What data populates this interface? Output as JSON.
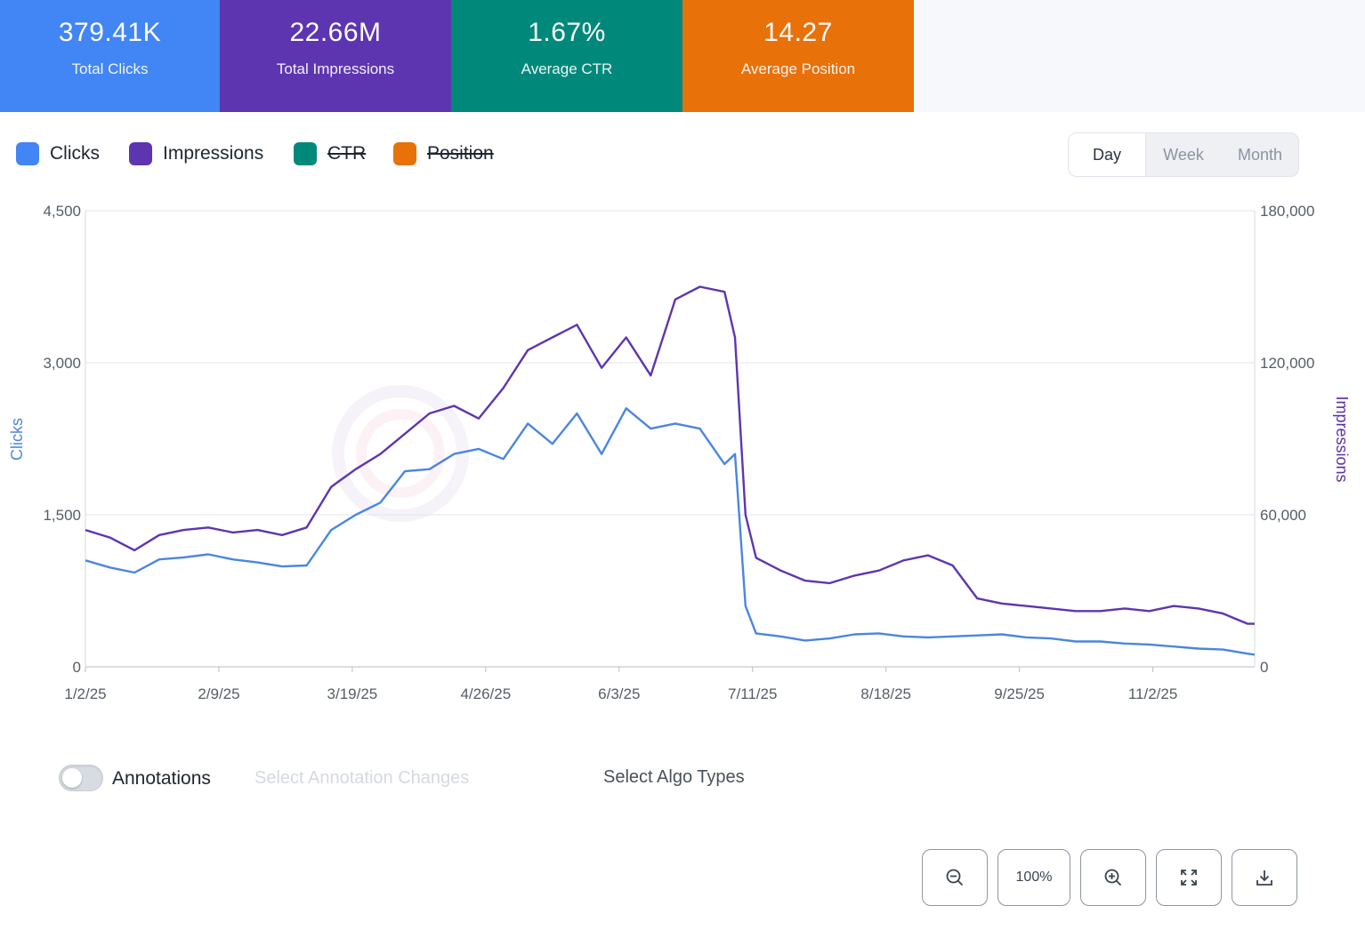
{
  "kpis": [
    {
      "value": "379.41K",
      "label": "Total Clicks",
      "color": "#4285f4"
    },
    {
      "value": "22.66M",
      "label": "Total Impressions",
      "color": "#5e35b1"
    },
    {
      "value": "1.67%",
      "label": "Average CTR",
      "color": "#00897b"
    },
    {
      "value": "14.27",
      "label": "Average Position",
      "color": "#e8710a"
    }
  ],
  "legend": [
    {
      "label": "Clicks",
      "color": "#4285f4",
      "enabled": true
    },
    {
      "label": "Impressions",
      "color": "#5e35b1",
      "enabled": true
    },
    {
      "label": "CTR",
      "color": "#00897b",
      "enabled": false
    },
    {
      "label": "Position",
      "color": "#e8710a",
      "enabled": false
    }
  ],
  "range": {
    "options": [
      "Day",
      "Week",
      "Month"
    ],
    "selected": "Day"
  },
  "annotations": {
    "toggle_label": "Annotations",
    "enabled": false,
    "select_placeholder": "Select Annotation Changes",
    "algo_placeholder": "Select Algo Types"
  },
  "controls": {
    "zoom_out_icon": "zoom-out-icon",
    "zoom_level": "100%",
    "zoom_in_icon": "zoom-in-icon",
    "fullscreen_icon": "fullscreen-icon",
    "download_icon": "download-icon"
  },
  "chart_data": {
    "type": "line",
    "x_range": [
      "2025-01-02",
      "2025-12-01"
    ],
    "x_ticks": [
      "1/2/25",
      "2/9/25",
      "3/19/25",
      "4/26/25",
      "6/3/25",
      "7/11/25",
      "8/18/25",
      "9/25/25",
      "11/2/25"
    ],
    "y_left": {
      "label": "Clicks",
      "min": 0,
      "max": 4500,
      "ticks": [
        "0",
        "1,500",
        "3,000",
        "4,500"
      ]
    },
    "y_right": {
      "label": "Impressions",
      "min": 0,
      "max": 180000,
      "ticks": [
        "0",
        "60,000",
        "120,000",
        "180,000"
      ]
    },
    "grid": true,
    "series": [
      {
        "name": "Clicks",
        "axis": "left",
        "color": "#4a86e0",
        "points": [
          [
            "2025-01-02",
            1050
          ],
          [
            "2025-01-09",
            980
          ],
          [
            "2025-01-16",
            930
          ],
          [
            "2025-01-23",
            1060
          ],
          [
            "2025-01-30",
            1080
          ],
          [
            "2025-02-06",
            1110
          ],
          [
            "2025-02-13",
            1060
          ],
          [
            "2025-02-20",
            1030
          ],
          [
            "2025-02-27",
            990
          ],
          [
            "2025-03-06",
            1000
          ],
          [
            "2025-03-13",
            1350
          ],
          [
            "2025-03-20",
            1500
          ],
          [
            "2025-03-27",
            1620
          ],
          [
            "2025-04-03",
            1930
          ],
          [
            "2025-04-10",
            1950
          ],
          [
            "2025-04-17",
            2100
          ],
          [
            "2025-04-24",
            2150
          ],
          [
            "2025-05-01",
            2050
          ],
          [
            "2025-05-08",
            2400
          ],
          [
            "2025-05-15",
            2200
          ],
          [
            "2025-05-22",
            2500
          ],
          [
            "2025-05-29",
            2100
          ],
          [
            "2025-06-05",
            2550
          ],
          [
            "2025-06-12",
            2350
          ],
          [
            "2025-06-19",
            2400
          ],
          [
            "2025-06-26",
            2350
          ],
          [
            "2025-07-03",
            2000
          ],
          [
            "2025-07-06",
            2100
          ],
          [
            "2025-07-09",
            600
          ],
          [
            "2025-07-12",
            330
          ],
          [
            "2025-07-19",
            300
          ],
          [
            "2025-07-26",
            260
          ],
          [
            "2025-08-02",
            280
          ],
          [
            "2025-08-09",
            320
          ],
          [
            "2025-08-16",
            330
          ],
          [
            "2025-08-23",
            300
          ],
          [
            "2025-08-30",
            290
          ],
          [
            "2025-09-06",
            300
          ],
          [
            "2025-09-13",
            310
          ],
          [
            "2025-09-20",
            320
          ],
          [
            "2025-09-27",
            290
          ],
          [
            "2025-10-04",
            280
          ],
          [
            "2025-10-11",
            250
          ],
          [
            "2025-10-18",
            250
          ],
          [
            "2025-10-25",
            230
          ],
          [
            "2025-11-01",
            220
          ],
          [
            "2025-11-08",
            200
          ],
          [
            "2025-11-15",
            180
          ],
          [
            "2025-11-22",
            170
          ],
          [
            "2025-11-29",
            130
          ],
          [
            "2025-12-01",
            120
          ]
        ]
      },
      {
        "name": "Impressions",
        "axis": "right",
        "color": "#5e35b1",
        "points": [
          [
            "2025-01-02",
            54000
          ],
          [
            "2025-01-09",
            51000
          ],
          [
            "2025-01-16",
            46000
          ],
          [
            "2025-01-23",
            52000
          ],
          [
            "2025-01-30",
            54000
          ],
          [
            "2025-02-06",
            55000
          ],
          [
            "2025-02-13",
            53000
          ],
          [
            "2025-02-20",
            54000
          ],
          [
            "2025-02-27",
            52000
          ],
          [
            "2025-03-06",
            55000
          ],
          [
            "2025-03-13",
            71000
          ],
          [
            "2025-03-20",
            78000
          ],
          [
            "2025-03-27",
            84000
          ],
          [
            "2025-04-03",
            92000
          ],
          [
            "2025-04-10",
            100000
          ],
          [
            "2025-04-17",
            103000
          ],
          [
            "2025-04-24",
            98000
          ],
          [
            "2025-05-01",
            110000
          ],
          [
            "2025-05-08",
            125000
          ],
          [
            "2025-05-15",
            130000
          ],
          [
            "2025-05-22",
            135000
          ],
          [
            "2025-05-29",
            118000
          ],
          [
            "2025-06-05",
            130000
          ],
          [
            "2025-06-12",
            115000
          ],
          [
            "2025-06-19",
            145000
          ],
          [
            "2025-06-26",
            150000
          ],
          [
            "2025-07-03",
            148000
          ],
          [
            "2025-07-06",
            130000
          ],
          [
            "2025-07-09",
            60000
          ],
          [
            "2025-07-12",
            43000
          ],
          [
            "2025-07-19",
            38000
          ],
          [
            "2025-07-26",
            34000
          ],
          [
            "2025-08-02",
            33000
          ],
          [
            "2025-08-09",
            36000
          ],
          [
            "2025-08-16",
            38000
          ],
          [
            "2025-08-23",
            42000
          ],
          [
            "2025-08-30",
            44000
          ],
          [
            "2025-09-06",
            40000
          ],
          [
            "2025-09-13",
            27000
          ],
          [
            "2025-09-20",
            25000
          ],
          [
            "2025-09-27",
            24000
          ],
          [
            "2025-10-04",
            23000
          ],
          [
            "2025-10-11",
            22000
          ],
          [
            "2025-10-18",
            22000
          ],
          [
            "2025-10-25",
            23000
          ],
          [
            "2025-11-01",
            22000
          ],
          [
            "2025-11-08",
            24000
          ],
          [
            "2025-11-15",
            23000
          ],
          [
            "2025-11-22",
            21000
          ],
          [
            "2025-11-29",
            17000
          ],
          [
            "2025-12-01",
            17000
          ]
        ]
      }
    ]
  }
}
